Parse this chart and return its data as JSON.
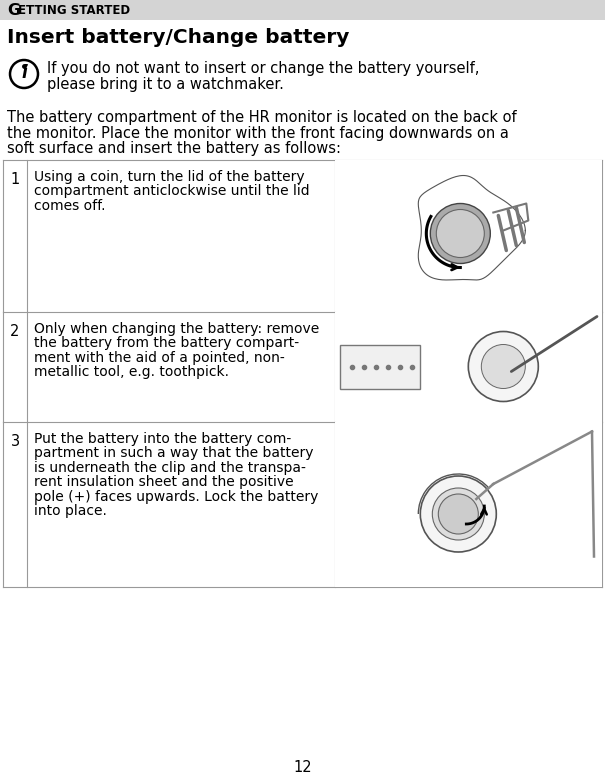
{
  "page_background": "#ffffff",
  "header_bg": "#d4d4d4",
  "header_text_G": "G",
  "header_text_rest": "ETTING STARTED",
  "title": "Insert battery/Change battery",
  "info_line1": "If you do not want to insert or change the battery yourself,",
  "info_line2": "please bring it to a watchmaker.",
  "intro_line1": "The battery compartment of the HR monitor is located on the back of",
  "intro_line2": "the monitor. Place the monitor with the front facing downwards on a",
  "intro_line3": "soft surface and insert the battery as follows:",
  "steps": [
    {
      "num": "1",
      "lines": [
        "Using a coin, turn the lid of the battery",
        "compartment anticlockwise until the lid",
        "comes off."
      ]
    },
    {
      "num": "2",
      "lines": [
        "Only when changing the battery: remove",
        "the battery from the battery compart-",
        "ment with the aid of a pointed, non-",
        "metallic tool, e.g. toothpick."
      ]
    },
    {
      "num": "3",
      "lines": [
        "Put the battery into the battery com-",
        "partment in such a way that the battery",
        "is underneath the clip and the transpa-",
        "rent insulation sheet and the positive",
        "pole (+) faces upwards. Lock the battery",
        "into place."
      ]
    }
  ],
  "page_number": "12",
  "header_fontsize": 9.5,
  "title_fontsize": 14.5,
  "body_fontsize": 10.5,
  "step_text_fontsize": 10.0,
  "step_num_fontsize": 10.5,
  "line_color": "#888888",
  "table_border_color": "#999999"
}
